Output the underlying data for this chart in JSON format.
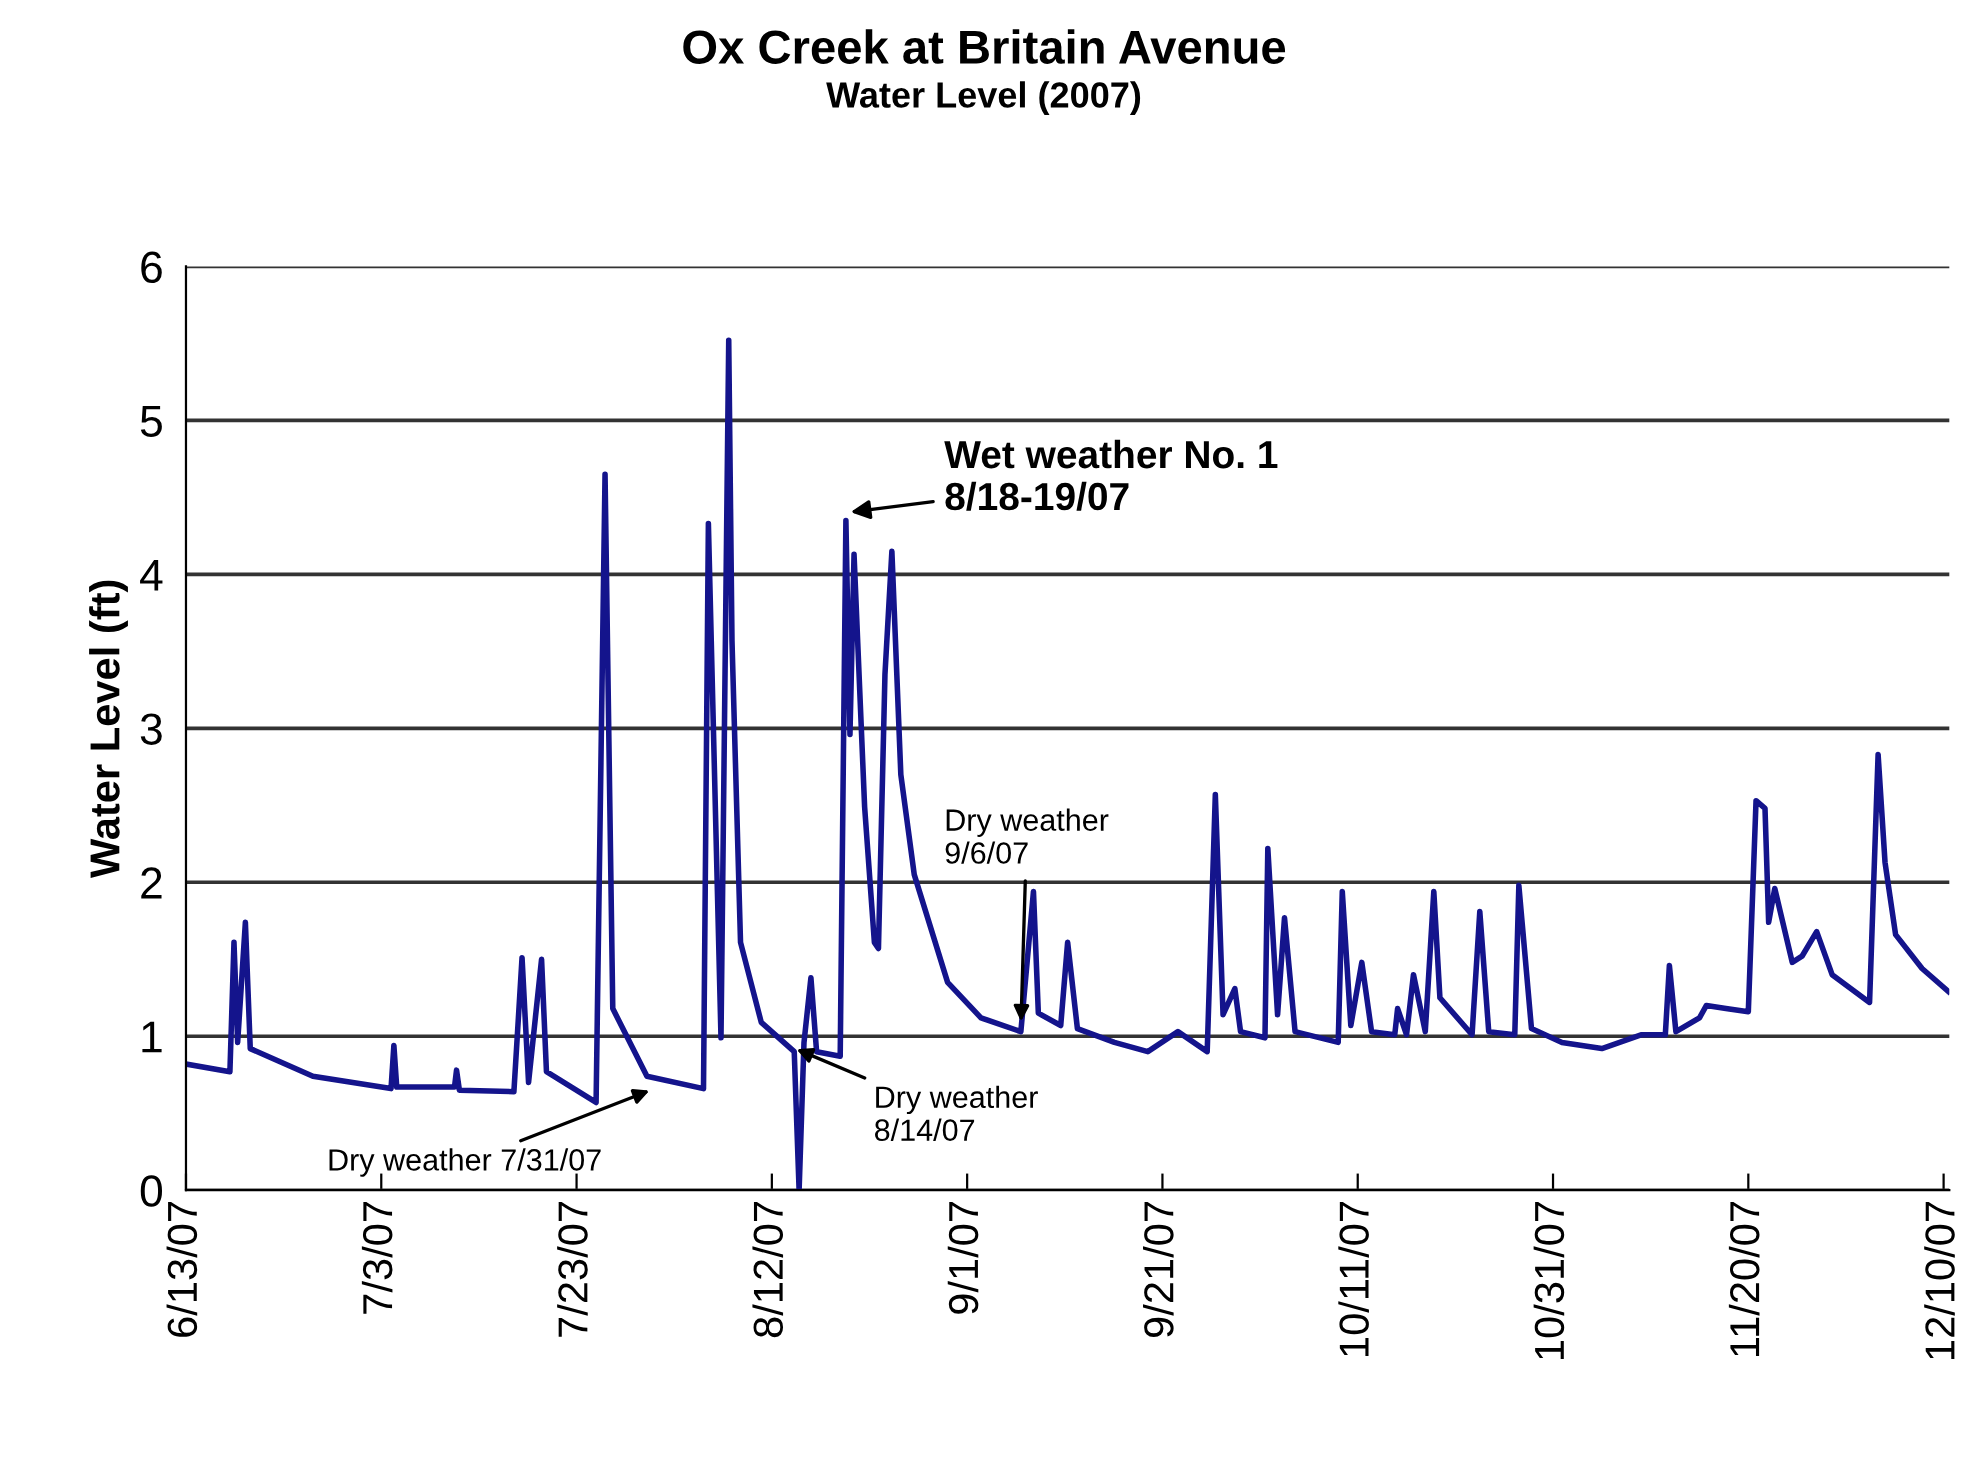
{
  "chart_data": {
    "type": "line",
    "title": "Ox Creek at Britain Avenue",
    "subtitle": "Water Level (2007)",
    "ylabel": "Water Level (ft)",
    "x": [
      "2007-06-13T00:00",
      "2007-06-17T12:00",
      "2007-06-17T22:00",
      "2007-06-18T07:00",
      "2007-06-19T02:00",
      "2007-06-19T14:00",
      "2007-06-26T00:00",
      "2007-07-04T00:00",
      "2007-07-04T07:00",
      "2007-07-04T14:00",
      "2007-07-10T12:00",
      "2007-07-10T17:00",
      "2007-07-11T00:00",
      "2007-07-16T14:00",
      "2007-07-17T10:00",
      "2007-07-18T02:00",
      "2007-07-19T10:00",
      "2007-07-19T22:00",
      "2007-07-25T00:00",
      "2007-07-25T22:00",
      "2007-07-26T17:00",
      "2007-07-30T05:00",
      "2007-08-05T00:00",
      "2007-08-05T12:00",
      "2007-08-06T19:00",
      "2007-08-07T14:00",
      "2007-08-07T22:00",
      "2007-08-08T19:00",
      "2007-08-10T22:00",
      "2007-08-14T07:00",
      "2007-08-14T19:00",
      "2007-08-15T07:00",
      "2007-08-16T00:00",
      "2007-08-16T14:00",
      "2007-08-19T00:00",
      "2007-08-19T14:00",
      "2007-08-20T00:00",
      "2007-08-20T10:00",
      "2007-08-21T12:00",
      "2007-08-22T12:00",
      "2007-08-22T22:00",
      "2007-08-23T14:00",
      "2007-08-24T07:00",
      "2007-08-25T05:00",
      "2007-08-26T14:00",
      "2007-08-30T00:00",
      "2007-09-02T10:00",
      "2007-09-06T12:00",
      "2007-09-07T19:00",
      "2007-09-08T07:00",
      "2007-09-10T14:00",
      "2007-09-11T07:00",
      "2007-09-12T07:00",
      "2007-09-16T02:00",
      "2007-09-19T12:00",
      "2007-09-22T14:00",
      "2007-09-25T14:00",
      "2007-09-26T10:00",
      "2007-09-27T05:00",
      "2007-09-28T10:00",
      "2007-09-29T00:00",
      "2007-10-01T12:00",
      "2007-10-01T19:00",
      "2007-10-02T19:00",
      "2007-10-03T12:00",
      "2007-10-04T14:00",
      "2007-10-09T00:00",
      "2007-10-09T10:00",
      "2007-10-10T07:00",
      "2007-10-11T10:00",
      "2007-10-12T10:00",
      "2007-10-14T19:00",
      "2007-10-15T02:00",
      "2007-10-16T00:00",
      "2007-10-16T17:00",
      "2007-10-17T22:00",
      "2007-10-18T19:00",
      "2007-10-19T10:00",
      "2007-10-22T17:00",
      "2007-10-23T12:00",
      "2007-10-24T10:00",
      "2007-10-27T02:00",
      "2007-10-27T12:00",
      "2007-10-28T19:00",
      "2007-10-31T22:00",
      "2007-11-05T00:00",
      "2007-11-09T02:00",
      "2007-11-11T12:00",
      "2007-11-11T22:00",
      "2007-11-12T14:00",
      "2007-11-15T00:00",
      "2007-11-15T17:00",
      "2007-11-17T17:00",
      "2007-11-20T00:00",
      "2007-11-20T19:00",
      "2007-11-21T17:00",
      "2007-11-22T02:00",
      "2007-11-22T17:00",
      "2007-11-24T12:00",
      "2007-11-25T12:00",
      "2007-11-27T00:00",
      "2007-11-28T14:00",
      "2007-12-02T10:00",
      "2007-12-03T07:00",
      "2007-12-04T00:00",
      "2007-12-05T02:00",
      "2007-12-07T19:00",
      "2007-12-10T12:00"
    ],
    "series": [
      {
        "color": "#14148c",
        "values": [
          0.82,
          0.77,
          1.61,
          0.96,
          1.74,
          0.92,
          0.74,
          0.66,
          0.94,
          0.67,
          0.67,
          0.78,
          0.65,
          0.64,
          1.51,
          0.7,
          1.5,
          0.77,
          0.57,
          4.65,
          1.18,
          0.74,
          0.66,
          4.33,
          0.99,
          5.52,
          3.57,
          1.61,
          1.09,
          0.9,
          0.0,
          0.96,
          1.38,
          0.9,
          0.87,
          4.35,
          2.96,
          4.13,
          2.49,
          1.61,
          1.57,
          3.35,
          4.15,
          2.7,
          2.05,
          1.35,
          1.12,
          1.03,
          1.94,
          1.15,
          1.07,
          1.61,
          1.05,
          0.96,
          0.9,
          1.03,
          0.9,
          2.57,
          1.14,
          1.31,
          1.03,
          0.99,
          2.22,
          1.14,
          1.77,
          1.03,
          0.96,
          1.94,
          1.07,
          1.48,
          1.03,
          1.01,
          1.18,
          1.01,
          1.4,
          1.03,
          1.94,
          1.25,
          1.01,
          1.81,
          1.03,
          1.01,
          1.98,
          1.05,
          0.96,
          0.92,
          1.01,
          1.01,
          1.46,
          1.03,
          1.12,
          1.2,
          1.18,
          1.16,
          2.53,
          2.48,
          1.74,
          1.96,
          1.48,
          1.52,
          1.68,
          1.4,
          1.22,
          2.83,
          2.13,
          1.66,
          1.44,
          1.29
        ]
      }
    ],
    "xlim": [
      "2007-06-13T00:00",
      "2007-12-10T14:00"
    ],
    "xticks": [
      {
        "value": "2007-06-13",
        "label": "6/13/07"
      },
      {
        "value": "2007-07-03",
        "label": "7/3/07"
      },
      {
        "value": "2007-07-23",
        "label": "7/23/07"
      },
      {
        "value": "2007-08-12",
        "label": "8/12/07"
      },
      {
        "value": "2007-09-01",
        "label": "9/1/07"
      },
      {
        "value": "2007-09-21",
        "label": "9/21/07"
      },
      {
        "value": "2007-10-11",
        "label": "10/11/07"
      },
      {
        "value": "2007-10-31",
        "label": "10/31/07"
      },
      {
        "value": "2007-11-20",
        "label": "11/20/07"
      },
      {
        "value": "2007-12-10",
        "label": "12/10/07"
      }
    ],
    "ylim": [
      0,
      6
    ],
    "yticks": [
      0,
      1,
      2,
      3,
      4,
      5,
      6
    ],
    "grid": "y",
    "marker": "none",
    "line_style": "solid",
    "annotations": [
      {
        "text": "Wet weather No. 1\n8/18-19/07",
        "x": "2007-08-19T12:00",
        "y": 4.4
      },
      {
        "text": "Dry weather\n9/6/07",
        "x": "2007-09-06T12:00",
        "y": 1.06
      },
      {
        "text": "Dry weather\n8/14/07",
        "x": "2007-08-14T00:00",
        "y": 0.93
      },
      {
        "text": "Dry weather 7/31/07",
        "x": "2007-07-31T00:00",
        "y": 0.66
      }
    ]
  }
}
